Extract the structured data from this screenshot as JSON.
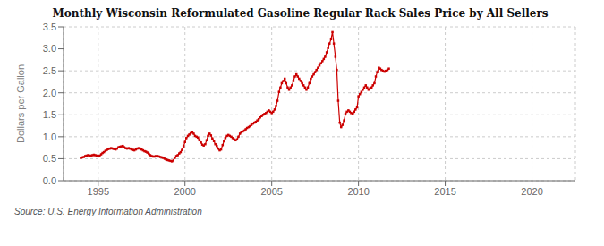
{
  "chart_data": {
    "type": "line",
    "title": "Monthly Wisconsin Reformulated Gasoline Regular Rack Sales Price by All Sellers",
    "ylabel": "Dollars per Gallon",
    "annotations": [
      "Source: U.S. Energy Information Administration"
    ],
    "color": "#cc0000",
    "marker": "square",
    "line_style": "solid",
    "grid": true,
    "xlim": [
      1993.0,
      2022.5
    ],
    "xticks": [
      1995,
      2000,
      2005,
      2010,
      2015,
      2020
    ],
    "ylim": [
      0.0,
      3.5
    ],
    "yticks": [
      {
        "value": 0.0,
        "label": "0.0"
      },
      0.5,
      {
        "value": 1.0,
        "label": "1.0"
      },
      1.5,
      {
        "value": 2.0,
        "label": "2.0"
      },
      2.5,
      {
        "value": 3.0,
        "label": "3.0"
      },
      3.5
    ],
    "x": [
      1994.0,
      1994.08,
      1994.17,
      1994.25,
      1994.33,
      1994.42,
      1994.5,
      1994.58,
      1994.67,
      1994.75,
      1994.83,
      1994.92,
      1995.0,
      1995.08,
      1995.17,
      1995.25,
      1995.33,
      1995.42,
      1995.5,
      1995.58,
      1995.67,
      1995.75,
      1995.83,
      1995.92,
      1996.0,
      1996.08,
      1996.17,
      1996.25,
      1996.33,
      1996.42,
      1996.5,
      1996.58,
      1996.67,
      1996.75,
      1996.83,
      1996.92,
      1997.0,
      1997.08,
      1997.17,
      1997.25,
      1997.33,
      1997.42,
      1997.5,
      1997.58,
      1997.67,
      1997.75,
      1997.83,
      1997.92,
      1998.0,
      1998.08,
      1998.17,
      1998.25,
      1998.33,
      1998.42,
      1998.5,
      1998.58,
      1998.67,
      1998.75,
      1998.83,
      1998.92,
      1999.0,
      1999.08,
      1999.17,
      1999.25,
      1999.33,
      1999.42,
      1999.5,
      1999.58,
      1999.67,
      1999.75,
      1999.83,
      1999.92,
      2000.0,
      2000.08,
      2000.17,
      2000.25,
      2000.33,
      2000.42,
      2000.5,
      2000.58,
      2000.67,
      2000.75,
      2000.83,
      2000.92,
      2001.0,
      2001.08,
      2001.17,
      2001.25,
      2001.33,
      2001.42,
      2001.5,
      2001.58,
      2001.67,
      2001.75,
      2001.83,
      2001.92,
      2002.0,
      2002.08,
      2002.17,
      2002.25,
      2002.33,
      2002.42,
      2002.5,
      2002.58,
      2002.67,
      2002.75,
      2002.83,
      2002.92,
      2003.0,
      2003.08,
      2003.17,
      2003.25,
      2003.33,
      2003.42,
      2003.5,
      2003.58,
      2003.67,
      2003.75,
      2003.83,
      2003.92,
      2004.0,
      2004.08,
      2004.17,
      2004.25,
      2004.33,
      2004.42,
      2004.5,
      2004.58,
      2004.67,
      2004.75,
      2004.83,
      2004.92,
      2005.0,
      2005.08,
      2005.17,
      2005.25,
      2005.33,
      2005.42,
      2005.5,
      2005.58,
      2005.67,
      2005.75,
      2005.83,
      2005.92,
      2006.0,
      2006.08,
      2006.17,
      2006.25,
      2006.33,
      2006.42,
      2006.5,
      2006.58,
      2006.67,
      2006.75,
      2006.83,
      2006.92,
      2007.0,
      2007.08,
      2007.17,
      2007.25,
      2007.33,
      2007.42,
      2007.5,
      2007.58,
      2007.67,
      2007.75,
      2007.83,
      2007.92,
      2008.0,
      2008.08,
      2008.17,
      2008.25,
      2008.33,
      2008.42,
      2008.5,
      2008.58,
      2008.67,
      2008.75,
      2008.83,
      2008.92,
      2009.0,
      2009.08,
      2009.17,
      2009.25,
      2009.33,
      2009.42,
      2009.5,
      2009.58,
      2009.67,
      2009.75,
      2009.83,
      2009.92,
      2010.0,
      2010.08,
      2010.17,
      2010.25,
      2010.33,
      2010.42,
      2010.5,
      2010.58,
      2010.67,
      2010.75,
      2010.83,
      2010.92,
      2011.0,
      2011.08,
      2011.17,
      2011.25,
      2011.33,
      2011.42,
      2011.5,
      2011.58,
      2011.67,
      2011.75
    ],
    "values": [
      0.52,
      0.53,
      0.54,
      0.56,
      0.57,
      0.58,
      0.57,
      0.57,
      0.58,
      0.59,
      0.58,
      0.57,
      0.56,
      0.57,
      0.6,
      0.63,
      0.65,
      0.68,
      0.7,
      0.72,
      0.73,
      0.74,
      0.73,
      0.72,
      0.71,
      0.73,
      0.76,
      0.77,
      0.78,
      0.79,
      0.76,
      0.74,
      0.73,
      0.74,
      0.73,
      0.71,
      0.7,
      0.69,
      0.71,
      0.73,
      0.74,
      0.73,
      0.71,
      0.69,
      0.67,
      0.66,
      0.64,
      0.61,
      0.58,
      0.56,
      0.55,
      0.55,
      0.56,
      0.56,
      0.55,
      0.54,
      0.53,
      0.52,
      0.5,
      0.48,
      0.47,
      0.46,
      0.45,
      0.44,
      0.46,
      0.52,
      0.56,
      0.58,
      0.62,
      0.65,
      0.7,
      0.78,
      0.88,
      0.97,
      1.02,
      1.05,
      1.08,
      1.1,
      1.07,
      1.02,
      1.0,
      0.98,
      0.92,
      0.87,
      0.82,
      0.8,
      0.83,
      0.92,
      1.02,
      1.07,
      1.03,
      0.96,
      0.9,
      0.83,
      0.79,
      0.73,
      0.69,
      0.71,
      0.81,
      0.9,
      0.97,
      1.02,
      1.04,
      1.02,
      1.0,
      0.97,
      0.94,
      0.92,
      0.94,
      1.0,
      1.07,
      1.1,
      1.12,
      1.14,
      1.17,
      1.2,
      1.22,
      1.24,
      1.27,
      1.3,
      1.32,
      1.34,
      1.37,
      1.4,
      1.44,
      1.47,
      1.5,
      1.52,
      1.54,
      1.57,
      1.6,
      1.57,
      1.54,
      1.57,
      1.62,
      1.7,
      1.82,
      2.02,
      2.12,
      2.22,
      2.27,
      2.32,
      2.22,
      2.12,
      2.07,
      2.12,
      2.17,
      2.27,
      2.37,
      2.42,
      2.37,
      2.32,
      2.27,
      2.22,
      2.17,
      2.12,
      2.07,
      2.12,
      2.22,
      2.32,
      2.37,
      2.42,
      2.47,
      2.52,
      2.57,
      2.62,
      2.67,
      2.72,
      2.77,
      2.82,
      2.92,
      3.02,
      3.12,
      3.22,
      3.38,
      3.12,
      2.82,
      2.52,
      1.82,
      1.32,
      1.22,
      1.27,
      1.37,
      1.52,
      1.57,
      1.6,
      1.57,
      1.54,
      1.52,
      1.57,
      1.62,
      1.67,
      1.92,
      1.97,
      2.02,
      2.07,
      2.12,
      2.17,
      2.12,
      2.07,
      2.1,
      2.12,
      2.17,
      2.22,
      2.37,
      2.47,
      2.57,
      2.55,
      2.52,
      2.5,
      2.48,
      2.5,
      2.52,
      2.55
    ]
  }
}
